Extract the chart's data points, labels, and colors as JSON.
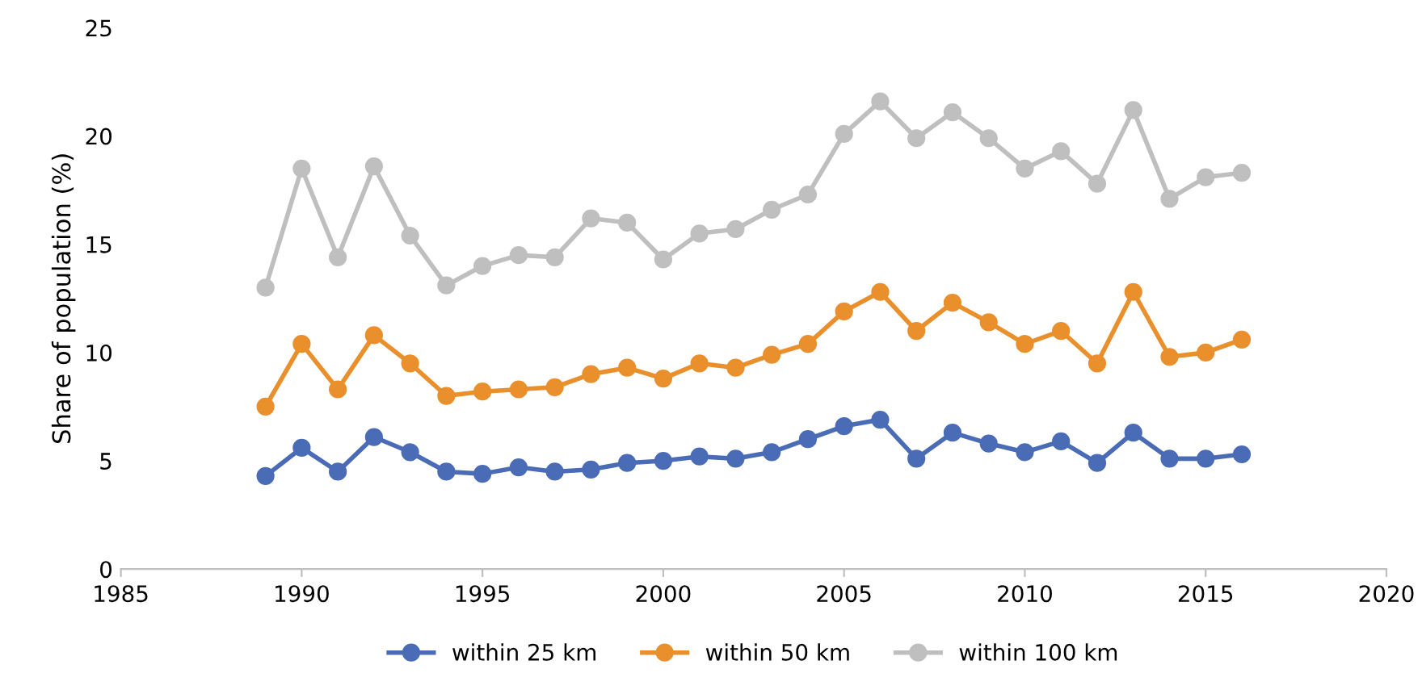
{
  "chart_data": {
    "type": "line",
    "ylabel": "Share of population (%)",
    "x": [
      1989,
      1990,
      1991,
      1992,
      1993,
      1994,
      1995,
      1996,
      1997,
      1998,
      1999,
      2000,
      2001,
      2002,
      2003,
      2004,
      2005,
      2006,
      2007,
      2008,
      2009,
      2010,
      2011,
      2012,
      2013,
      2014,
      2015,
      2016
    ],
    "series": [
      {
        "name": "within 25 km",
        "color": "#4a6bb5",
        "values": [
          4.3,
          5.6,
          4.5,
          6.1,
          5.4,
          4.5,
          4.4,
          4.7,
          4.5,
          4.6,
          4.9,
          5.0,
          5.2,
          5.1,
          5.4,
          6.0,
          6.6,
          6.9,
          5.1,
          6.3,
          5.8,
          5.4,
          5.9,
          4.9,
          6.3,
          5.1,
          5.1,
          5.3
        ]
      },
      {
        "name": "within 50 km",
        "color": "#e98f2c",
        "values": [
          7.5,
          10.4,
          8.3,
          10.8,
          9.5,
          8.0,
          8.2,
          8.3,
          8.4,
          9.0,
          9.3,
          8.8,
          9.5,
          9.3,
          9.9,
          10.4,
          11.9,
          12.8,
          11.0,
          12.3,
          11.4,
          10.4,
          11.0,
          9.5,
          12.8,
          9.8,
          10.0,
          10.6
        ]
      },
      {
        "name": "within 100 km",
        "color": "#bfbfbf",
        "values": [
          13.0,
          18.5,
          14.4,
          18.6,
          15.4,
          13.1,
          14.0,
          14.5,
          14.4,
          16.2,
          16.0,
          14.3,
          15.5,
          15.7,
          16.6,
          17.3,
          20.1,
          21.6,
          19.9,
          21.1,
          19.9,
          18.5,
          19.3,
          17.8,
          21.2,
          17.1,
          18.1,
          18.3
        ]
      }
    ],
    "xlim": [
      1985,
      2020
    ],
    "xticks": [
      1985,
      1990,
      1995,
      2000,
      2005,
      2010,
      2015,
      2020
    ],
    "ylim": [
      0,
      25
    ],
    "yticks": [
      0,
      5,
      10,
      15,
      20,
      25
    ],
    "grid": false,
    "legend": "bottom",
    "marker": "circle",
    "line_style": "solid"
  }
}
